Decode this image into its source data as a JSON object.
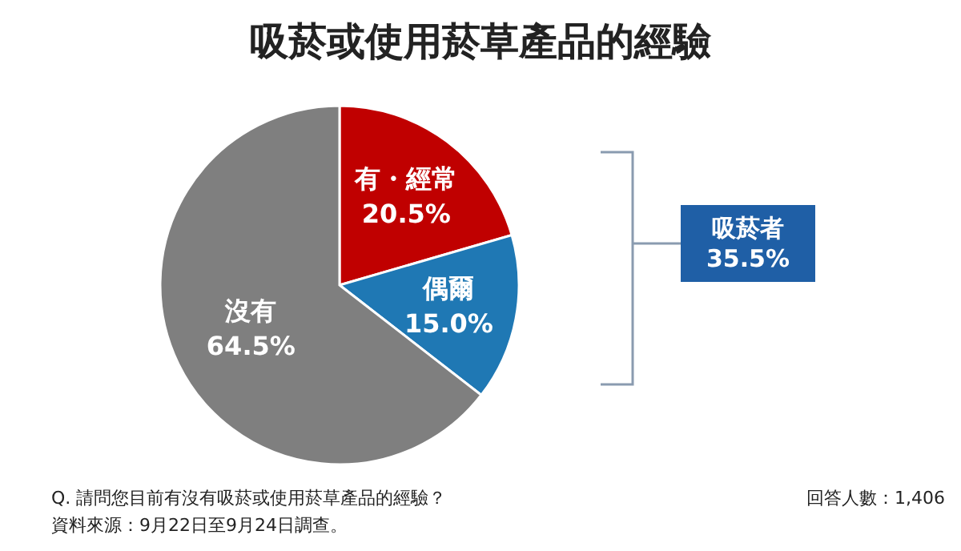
{
  "chart_data": {
    "type": "pie",
    "title": "吸菸或使用菸草產品的經驗",
    "categories": [
      "有・經常",
      "偶爾",
      "沒有"
    ],
    "values": [
      20.5,
      15.0,
      64.5
    ],
    "colors": [
      "#c00000",
      "#1f78b4",
      "#7f7f7f"
    ],
    "value_labels": [
      "20.5%",
      "15.0%",
      "64.5%"
    ],
    "annotations": [
      "吸菸者\n35.5%",
      "Q. 請問您目前有沒有吸菸或使用菸草產品的經驗？",
      "資料來源：9月22日至9月24日調查。",
      "回答人數：1,406"
    ]
  }
}
